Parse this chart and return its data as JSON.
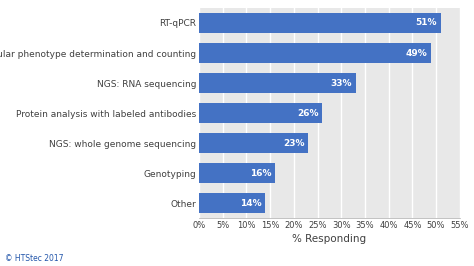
{
  "categories": [
    "Other",
    "Genotyping",
    "NGS: whole genome sequencing",
    "Protein analysis with labeled antibodies",
    "NGS: RNA sequencing",
    "Cellular phenotype determination and counting",
    "RT-qPCR"
  ],
  "values": [
    14,
    16,
    23,
    26,
    33,
    49,
    51
  ],
  "labels": [
    "14%",
    "16%",
    "23%",
    "26%",
    "33%",
    "49%",
    "51%"
  ],
  "bar_color": "#4472C4",
  "xlabel": "% Responding",
  "xlim": [
    0,
    55
  ],
  "xticks": [
    0,
    5,
    10,
    15,
    20,
    25,
    30,
    35,
    40,
    45,
    50,
    55
  ],
  "xtick_labels": [
    "0%",
    "5%",
    "10%",
    "15%",
    "20%",
    "25%",
    "30%",
    "35%",
    "40%",
    "45%",
    "50%",
    "55%"
  ],
  "fig_background": "#ffffff",
  "plot_background": "#e8e8e8",
  "grid_color": "#ffffff",
  "text_color": "#404040",
  "label_fontsize": 6.5,
  "tick_fontsize": 6.0,
  "xlabel_fontsize": 7.5,
  "bar_label_fontsize": 6.5,
  "watermark": "© HTStec 2017",
  "bar_height": 0.65
}
